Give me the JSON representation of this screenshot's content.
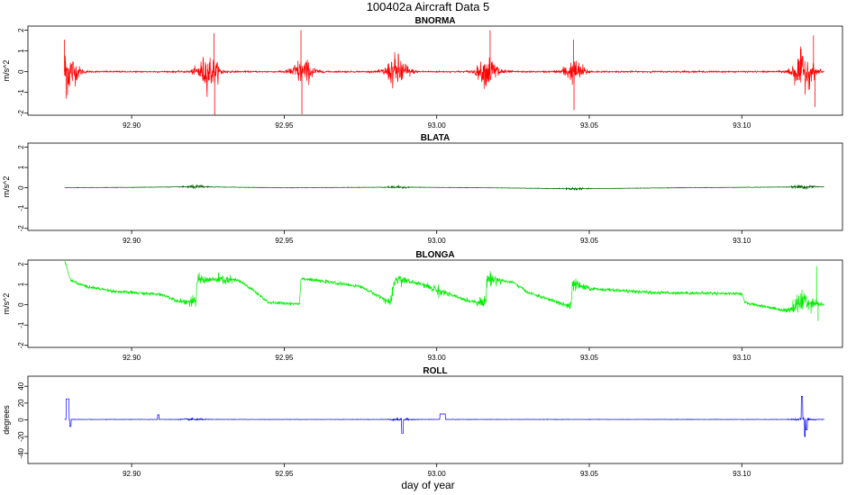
{
  "title": "100402a   Aircraft Data 5",
  "xlabel": "day of year",
  "chart_data": [
    {
      "type": "line",
      "title": "BNORMA",
      "ylabel": "m/s^2",
      "color": "#ff0000",
      "xlim": [
        92.866,
        93.133
      ],
      "ylim": [
        -2.1,
        2.2
      ],
      "xticks": [
        92.9,
        92.95,
        93.0,
        93.05,
        93.1
      ],
      "xtick_labels": [
        "92.90",
        "92.95",
        "93.00",
        "93.05",
        "93.10"
      ],
      "yticks": [
        -2,
        -1,
        0,
        1,
        2
      ],
      "ytick_labels": [
        "-2",
        "-1",
        "0",
        "1",
        "2"
      ],
      "x_start": 92.878,
      "x_end": 93.127,
      "baseline": [
        [
          92.878,
          0
        ],
        [
          93.127,
          0
        ]
      ],
      "noise_amplitude": 0.04,
      "bursts": [
        [
          92.8785,
          1.2
        ],
        [
          92.925,
          0.9
        ],
        [
          92.956,
          0.7
        ],
        [
          92.987,
          0.9
        ],
        [
          93.017,
          0.8
        ],
        [
          93.045,
          0.6
        ],
        [
          93.12,
          1.0
        ]
      ],
      "spikes": [
        [
          92.878,
          1.55
        ],
        [
          92.8785,
          -1.3
        ],
        [
          92.927,
          1.85
        ],
        [
          92.9272,
          -2.1
        ],
        [
          92.9555,
          2.0
        ],
        [
          92.9558,
          -2.05
        ],
        [
          93.0175,
          2.0
        ],
        [
          93.0448,
          1.55
        ],
        [
          93.045,
          -1.85
        ],
        [
          93.1235,
          1.75
        ],
        [
          93.124,
          -1.7
        ]
      ]
    },
    {
      "type": "line",
      "title": "BLATA",
      "ylabel": "m/s^2",
      "color": "#006400",
      "xlim": [
        92.866,
        93.133
      ],
      "ylim": [
        -2.1,
        2.2
      ],
      "xticks": [
        92.9,
        92.95,
        93.0,
        93.05,
        93.1
      ],
      "xtick_labels": [
        "92.90",
        "92.95",
        "93.00",
        "93.05",
        "93.10"
      ],
      "yticks": [
        -2,
        -1,
        0,
        1,
        2
      ],
      "ytick_labels": [
        "-2",
        "-1",
        "0",
        "1",
        "2"
      ],
      "x_start": 92.878,
      "x_end": 93.127,
      "baseline": [
        [
          92.878,
          0
        ],
        [
          92.9,
          0.02
        ],
        [
          92.92,
          0.05
        ],
        [
          92.95,
          0
        ],
        [
          92.987,
          0.03
        ],
        [
          93.017,
          0
        ],
        [
          93.045,
          -0.05
        ],
        [
          93.08,
          0
        ],
        [
          93.127,
          0.05
        ]
      ],
      "noise_amplitude": 0.012,
      "bursts": [
        [
          92.921,
          0.08
        ],
        [
          92.987,
          0.05
        ],
        [
          93.045,
          0.06
        ],
        [
          93.12,
          0.1
        ]
      ],
      "spikes": []
    },
    {
      "type": "line",
      "title": "BLONGA",
      "ylabel": "m/s^2",
      "color": "#00ee00",
      "xlim": [
        92.866,
        93.133
      ],
      "ylim": [
        -2.1,
        2.2
      ],
      "xticks": [
        92.9,
        92.95,
        93.0,
        93.05,
        93.1
      ],
      "xtick_labels": [
        "92.90",
        "92.95",
        "93.00",
        "93.05",
        "93.10"
      ],
      "yticks": [
        -2,
        -1,
        0,
        1,
        2
      ],
      "ytick_labels": [
        "-2",
        "-1",
        "0",
        "1",
        "2"
      ],
      "x_start": 92.878,
      "x_end": 93.127,
      "baseline": [
        [
          92.878,
          2.2
        ],
        [
          92.88,
          1.2
        ],
        [
          92.885,
          0.9
        ],
        [
          92.895,
          0.65
        ],
        [
          92.91,
          0.5
        ],
        [
          92.915,
          0.2
        ],
        [
          92.921,
          0.1
        ],
        [
          92.9215,
          1.25
        ],
        [
          92.935,
          1.2
        ],
        [
          92.94,
          0.7
        ],
        [
          92.945,
          0.1
        ],
        [
          92.955,
          0.05
        ],
        [
          92.9555,
          1.3
        ],
        [
          92.975,
          0.9
        ],
        [
          92.985,
          0.1
        ],
        [
          92.9865,
          1.3
        ],
        [
          92.995,
          1.0
        ],
        [
          93.01,
          0.2
        ],
        [
          93.016,
          0.1
        ],
        [
          93.0165,
          1.3
        ],
        [
          93.025,
          1.1
        ],
        [
          93.03,
          0.6
        ],
        [
          93.044,
          -0.1
        ],
        [
          93.0445,
          1.0
        ],
        [
          93.05,
          0.8
        ],
        [
          93.07,
          0.6
        ],
        [
          93.1,
          0.55
        ],
        [
          93.101,
          0.1
        ],
        [
          93.115,
          -0.3
        ],
        [
          93.12,
          0.2
        ],
        [
          93.127,
          0.0
        ]
      ],
      "noise_amplitude": 0.08,
      "bursts": [
        [
          92.921,
          0.25
        ],
        [
          92.93,
          0.2
        ],
        [
          92.987,
          0.3
        ],
        [
          93.0,
          0.2
        ],
        [
          93.017,
          0.3
        ],
        [
          93.045,
          0.25
        ],
        [
          93.12,
          0.6
        ]
      ],
      "spikes": [
        [
          93.1245,
          1.9
        ],
        [
          93.125,
          -0.8
        ]
      ]
    },
    {
      "type": "line",
      "title": "ROLL",
      "ylabel": "degrees",
      "color": "#0000ff",
      "xlim": [
        92.866,
        93.133
      ],
      "ylim": [
        -52,
        52
      ],
      "xticks": [
        92.9,
        92.95,
        93.0,
        93.05,
        93.1
      ],
      "xtick_labels": [
        "92.90",
        "92.95",
        "93.00",
        "93.05",
        "93.10"
      ],
      "yticks": [
        -40,
        -20,
        0,
        20,
        40
      ],
      "ytick_labels": [
        "-40",
        "-20",
        "0",
        "20",
        "40"
      ],
      "x_start": 92.878,
      "x_end": 93.127,
      "baseline": [
        [
          92.878,
          0.5
        ],
        [
          93.127,
          0.5
        ]
      ],
      "noise_amplitude": 0.25,
      "bursts": [
        [
          92.92,
          1.2
        ],
        [
          92.988,
          1.5
        ],
        [
          93.12,
          1.5
        ]
      ],
      "spikes": [],
      "pulses": [
        [
          92.8785,
          92.8795,
          25
        ],
        [
          92.8797,
          92.8802,
          -8
        ],
        [
          92.9085,
          92.909,
          6
        ],
        [
          92.9885,
          92.989,
          -16
        ],
        [
          93.001,
          93.0028,
          7
        ],
        [
          93.1195,
          93.12,
          28
        ],
        [
          93.1205,
          93.1208,
          -20
        ],
        [
          93.121,
          93.1215,
          -12
        ]
      ]
    }
  ]
}
